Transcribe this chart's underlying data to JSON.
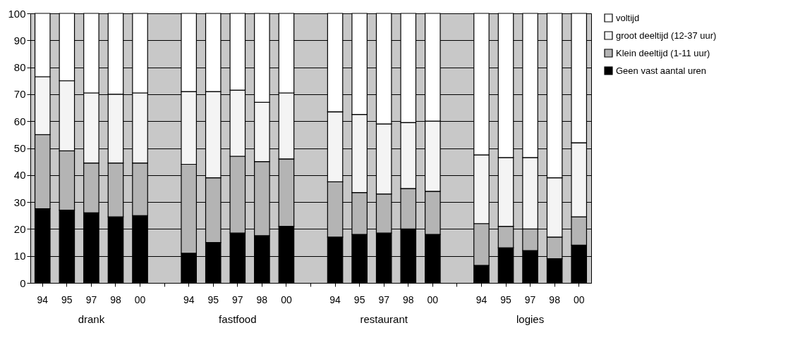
{
  "chart_data": {
    "type": "bar",
    "stacked": true,
    "categories": [
      "94",
      "95",
      "97",
      "98",
      "00",
      null,
      "94",
      "95",
      "97",
      "98",
      "00",
      null,
      "94",
      "95",
      "97",
      "98",
      "00",
      null,
      "94",
      "95",
      "97",
      "98",
      "00"
    ],
    "series": [
      {
        "name": "Geen vast aantal uren",
        "color": "#000000",
        "values": [
          27.5,
          27,
          26,
          24.5,
          25,
          null,
          11,
          15,
          18.5,
          17.5,
          21,
          null,
          17,
          18,
          18.5,
          20,
          18,
          null,
          6.5,
          13,
          12,
          9,
          14
        ]
      },
      {
        "name": "Klein deeltijd (1-11 uur)",
        "color": "#b4b4b4",
        "values": [
          27.5,
          22,
          18.5,
          20,
          19.5,
          null,
          33,
          24,
          28.5,
          27.5,
          25,
          null,
          20.5,
          15.5,
          14.5,
          15,
          16,
          null,
          15.5,
          8,
          8,
          8,
          10.5
        ]
      },
      {
        "name": "groot deeltijd (12-37 uur)",
        "color": "#f4f4f4",
        "values": [
          21.5,
          26,
          26,
          25.5,
          26,
          null,
          27,
          32,
          24.5,
          22,
          24.5,
          null,
          26,
          29,
          26,
          24.5,
          26,
          null,
          25.5,
          25.5,
          26.5,
          22,
          27.5
        ]
      },
      {
        "name": "voltijd",
        "color": "#ffffff",
        "values": [
          23.5,
          25,
          29.5,
          30,
          29.5,
          null,
          29,
          29,
          28.5,
          33,
          29.5,
          null,
          36.5,
          37.5,
          41,
          40.5,
          40,
          null,
          52.5,
          53.5,
          53.5,
          61,
          48
        ]
      }
    ],
    "ylim": [
      0,
      100
    ],
    "yticks": [
      0,
      10,
      20,
      30,
      40,
      50,
      60,
      70,
      80,
      90,
      100
    ],
    "grid": "y",
    "legend": "right",
    "annotations": [
      "drank",
      "fastfood",
      "restaurant",
      "logies"
    ]
  }
}
